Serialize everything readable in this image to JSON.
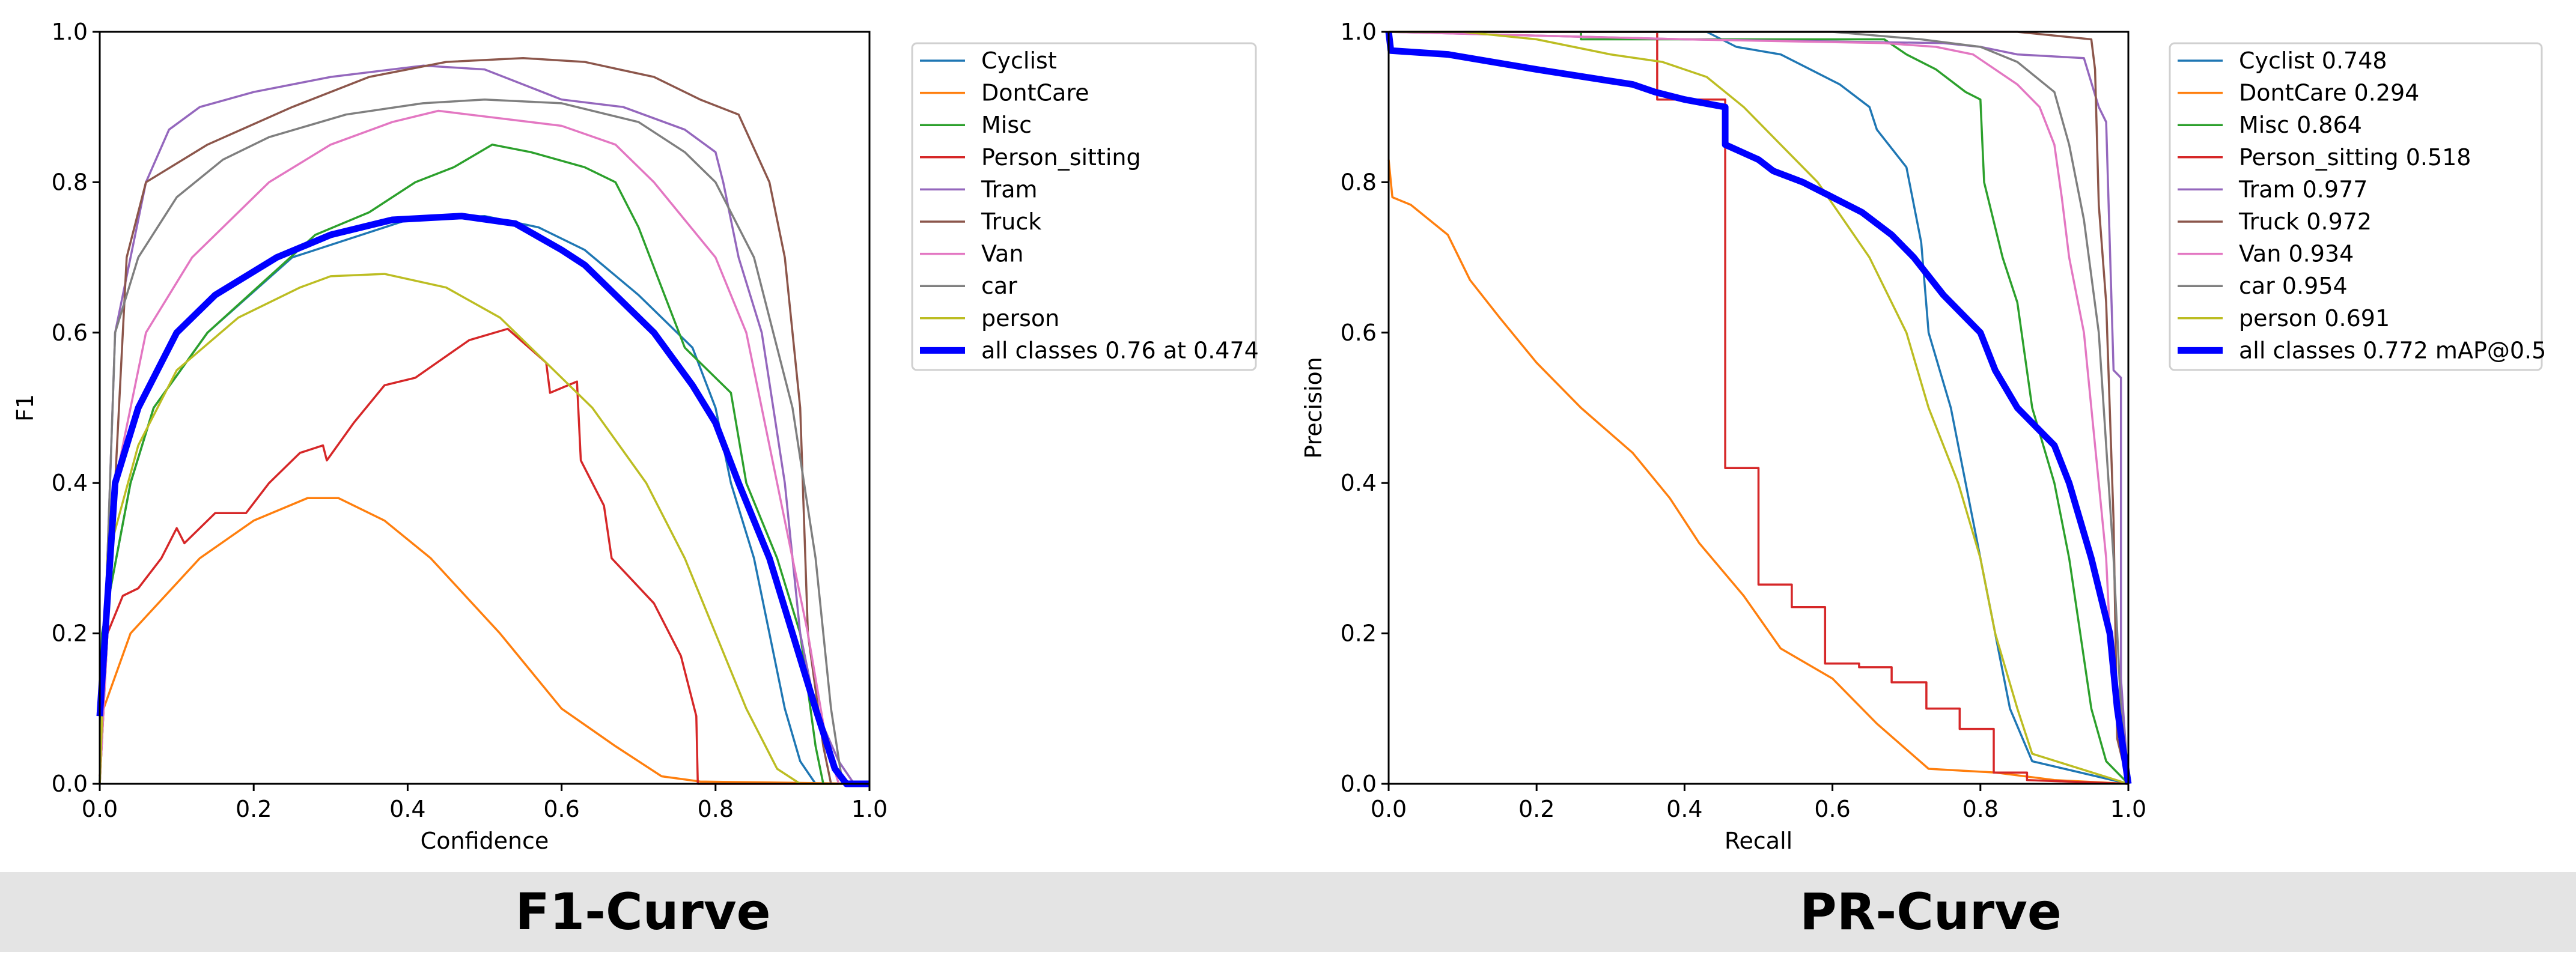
{
  "captions": {
    "left": "F1-Curve",
    "right": "PR-Curve"
  },
  "chart_data": [
    {
      "type": "line",
      "xlabel": "Confidence",
      "ylabel": "F1",
      "xlim": [
        0,
        1
      ],
      "ylim": [
        0,
        1
      ],
      "xticks": [
        "0.0",
        "0.2",
        "0.4",
        "0.6",
        "0.8",
        "1.0"
      ],
      "yticks": [
        "0.0",
        "0.2",
        "0.4",
        "0.6",
        "0.8",
        "1.0"
      ],
      "grid": false,
      "legend": "outside-right",
      "series": [
        {
          "name": "Cyclist",
          "color": "#1f77b4",
          "x": [
            0,
            0.003,
            0.04,
            0.07,
            0.14,
            0.25,
            0.4,
            0.5,
            0.57,
            0.63,
            0.7,
            0.77,
            0.8,
            0.82,
            0.85,
            0.87,
            0.89,
            0.91,
            0.93,
            1
          ],
          "y": [
            0,
            0.2,
            0.4,
            0.5,
            0.6,
            0.7,
            0.75,
            0.755,
            0.74,
            0.71,
            0.65,
            0.58,
            0.5,
            0.4,
            0.3,
            0.2,
            0.1,
            0.03,
            0,
            0
          ]
        },
        {
          "name": "DontCare",
          "color": "#ff7f0e",
          "x": [
            0,
            0.005,
            0.04,
            0.13,
            0.2,
            0.27,
            0.31,
            0.37,
            0.43,
            0.52,
            0.6,
            0.67,
            0.73,
            0.78,
            1
          ],
          "y": [
            0,
            0.1,
            0.2,
            0.3,
            0.35,
            0.38,
            0.38,
            0.35,
            0.3,
            0.2,
            0.1,
            0.05,
            0.01,
            0.003,
            0
          ]
        },
        {
          "name": "Misc",
          "color": "#2ca02c",
          "x": [
            0,
            0.003,
            0.04,
            0.07,
            0.14,
            0.28,
            0.35,
            0.41,
            0.46,
            0.51,
            0.56,
            0.63,
            0.67,
            0.7,
            0.73,
            0.76,
            0.82,
            0.84,
            0.88,
            0.91,
            0.93,
            0.94,
            1
          ],
          "y": [
            0,
            0.2,
            0.4,
            0.5,
            0.6,
            0.73,
            0.76,
            0.8,
            0.82,
            0.85,
            0.84,
            0.82,
            0.8,
            0.74,
            0.66,
            0.58,
            0.52,
            0.4,
            0.3,
            0.2,
            0.05,
            0,
            0
          ]
        },
        {
          "name": "Person_sitting",
          "color": "#d62728",
          "x": [
            0,
            0.01,
            0.03,
            0.05,
            0.08,
            0.1,
            0.11,
            0.15,
            0.19,
            0.22,
            0.26,
            0.29,
            0.295,
            0.33,
            0.37,
            0.41,
            0.48,
            0.53,
            0.58,
            0.585,
            0.62,
            0.625,
            0.655,
            0.665,
            0.72,
            0.755,
            0.775,
            0.777,
            1
          ],
          "y": [
            0.01,
            0.2,
            0.25,
            0.26,
            0.3,
            0.34,
            0.32,
            0.36,
            0.36,
            0.4,
            0.44,
            0.45,
            0.43,
            0.48,
            0.53,
            0.54,
            0.59,
            0.605,
            0.56,
            0.52,
            0.535,
            0.43,
            0.37,
            0.3,
            0.24,
            0.17,
            0.09,
            0,
            0
          ]
        },
        {
          "name": "Tram",
          "color": "#9467bd",
          "x": [
            0,
            0.02,
            0.06,
            0.09,
            0.13,
            0.2,
            0.3,
            0.42,
            0.5,
            0.55,
            0.6,
            0.68,
            0.76,
            0.8,
            0.81,
            0.83,
            0.86,
            0.89,
            0.91,
            0.93,
            0.96,
            0.98,
            1
          ],
          "y": [
            0,
            0.6,
            0.8,
            0.87,
            0.9,
            0.92,
            0.94,
            0.955,
            0.95,
            0.93,
            0.91,
            0.9,
            0.87,
            0.84,
            0.8,
            0.7,
            0.6,
            0.4,
            0.2,
            0.1,
            0.03,
            0,
            0
          ]
        },
        {
          "name": "Truck",
          "color": "#8c564b",
          "x": [
            0,
            0.035,
            0.06,
            0.14,
            0.25,
            0.35,
            0.45,
            0.55,
            0.63,
            0.72,
            0.78,
            0.83,
            0.87,
            0.89,
            0.91,
            0.92,
            0.94,
            0.95,
            1
          ],
          "y": [
            0,
            0.7,
            0.8,
            0.85,
            0.9,
            0.94,
            0.96,
            0.965,
            0.96,
            0.94,
            0.91,
            0.89,
            0.8,
            0.7,
            0.5,
            0.2,
            0.05,
            0,
            0
          ]
        },
        {
          "name": "Van",
          "color": "#e377c2",
          "x": [
            0,
            0.02,
            0.06,
            0.12,
            0.22,
            0.3,
            0.38,
            0.44,
            0.52,
            0.6,
            0.67,
            0.72,
            0.8,
            0.84,
            0.88,
            0.92,
            0.945,
            0.96,
            1
          ],
          "y": [
            0,
            0.4,
            0.6,
            0.7,
            0.8,
            0.85,
            0.88,
            0.895,
            0.885,
            0.875,
            0.85,
            0.8,
            0.7,
            0.6,
            0.4,
            0.2,
            0.05,
            0,
            0
          ]
        },
        {
          "name": "car",
          "color": "#7f7f7f",
          "x": [
            0,
            0.02,
            0.05,
            0.1,
            0.16,
            0.22,
            0.32,
            0.42,
            0.5,
            0.6,
            0.7,
            0.76,
            0.8,
            0.85,
            0.9,
            0.93,
            0.95,
            0.965,
            1
          ],
          "y": [
            0,
            0.6,
            0.7,
            0.78,
            0.83,
            0.86,
            0.89,
            0.905,
            0.91,
            0.905,
            0.88,
            0.84,
            0.8,
            0.7,
            0.5,
            0.3,
            0.1,
            0,
            0
          ]
        },
        {
          "name": "person",
          "color": "#bcbd22",
          "x": [
            0,
            0.01,
            0.05,
            0.1,
            0.18,
            0.26,
            0.3,
            0.37,
            0.45,
            0.52,
            0.59,
            0.64,
            0.71,
            0.76,
            0.8,
            0.84,
            0.88,
            0.91,
            1
          ],
          "y": [
            0,
            0.3,
            0.45,
            0.55,
            0.62,
            0.66,
            0.675,
            0.678,
            0.66,
            0.62,
            0.55,
            0.5,
            0.4,
            0.3,
            0.2,
            0.1,
            0.02,
            0,
            0
          ]
        },
        {
          "name": "all classes 0.76 at 0.474",
          "color": "#0000ff",
          "bold": true,
          "x": [
            0,
            0.02,
            0.05,
            0.1,
            0.15,
            0.23,
            0.3,
            0.38,
            0.47,
            0.54,
            0.6,
            0.63,
            0.67,
            0.72,
            0.77,
            0.8,
            0.83,
            0.87,
            0.9,
            0.93,
            0.955,
            0.97,
            1
          ],
          "y": [
            0.09,
            0.4,
            0.5,
            0.6,
            0.65,
            0.7,
            0.73,
            0.75,
            0.755,
            0.745,
            0.71,
            0.69,
            0.65,
            0.6,
            0.53,
            0.48,
            0.4,
            0.3,
            0.2,
            0.1,
            0.02,
            0,
            0
          ]
        }
      ]
    },
    {
      "type": "line",
      "xlabel": "Recall",
      "ylabel": "Precision",
      "xlim": [
        0,
        1
      ],
      "ylim": [
        0,
        1
      ],
      "xticks": [
        "0.0",
        "0.2",
        "0.4",
        "0.6",
        "0.8",
        "1.0"
      ],
      "yticks": [
        "0.0",
        "0.2",
        "0.4",
        "0.6",
        "0.8",
        "1.0"
      ],
      "grid": false,
      "legend": "outside-right",
      "series": [
        {
          "name": "Cyclist 0.748",
          "color": "#1f77b4",
          "x": [
            0,
            0.43,
            0.47,
            0.53,
            0.57,
            0.61,
            0.65,
            0.66,
            0.7,
            0.72,
            0.73,
            0.76,
            0.78,
            0.8,
            0.82,
            0.84,
            0.87,
            1
          ],
          "y": [
            1,
            1,
            0.98,
            0.97,
            0.95,
            0.93,
            0.9,
            0.87,
            0.82,
            0.72,
            0.6,
            0.5,
            0.4,
            0.3,
            0.2,
            0.1,
            0.03,
            0
          ]
        },
        {
          "name": "DontCare 0.294",
          "color": "#ff7f0e",
          "x": [
            0,
            0.005,
            0.03,
            0.08,
            0.11,
            0.15,
            0.2,
            0.26,
            0.33,
            0.38,
            0.42,
            0.48,
            0.53,
            0.6,
            0.66,
            0.73,
            0.82,
            0.9,
            1
          ],
          "y": [
            0.83,
            0.78,
            0.77,
            0.73,
            0.67,
            0.62,
            0.56,
            0.5,
            0.44,
            0.38,
            0.32,
            0.25,
            0.18,
            0.14,
            0.08,
            0.02,
            0.015,
            0.005,
            0
          ]
        },
        {
          "name": "Misc 0.864",
          "color": "#2ca02c",
          "x": [
            0,
            0.26,
            0.26,
            0.67,
            0.7,
            0.74,
            0.78,
            0.8,
            0.805,
            0.83,
            0.85,
            0.87,
            0.9,
            0.92,
            0.935,
            0.95,
            0.97,
            1
          ],
          "y": [
            1,
            1,
            0.99,
            0.99,
            0.97,
            0.95,
            0.92,
            0.91,
            0.8,
            0.7,
            0.64,
            0.5,
            0.4,
            0.3,
            0.2,
            0.1,
            0.03,
            0
          ]
        },
        {
          "name": "Person_sitting 0.518",
          "color": "#d62728",
          "x": [
            0,
            0.363,
            0.363,
            0.455,
            0.455,
            0.5,
            0.5,
            0.545,
            0.545,
            0.59,
            0.59,
            0.636,
            0.636,
            0.68,
            0.68,
            0.727,
            0.727,
            0.772,
            0.772,
            0.818,
            0.818,
            0.863,
            0.863,
            1
          ],
          "y": [
            1,
            1,
            0.91,
            0.91,
            0.42,
            0.42,
            0.265,
            0.265,
            0.235,
            0.235,
            0.16,
            0.16,
            0.155,
            0.155,
            0.135,
            0.135,
            0.1,
            0.1,
            0.073,
            0.073,
            0.015,
            0.015,
            0.005,
            0
          ]
        },
        {
          "name": "Tram 0.977",
          "color": "#9467bd",
          "x": [
            0,
            0.4,
            0.75,
            0.8,
            0.85,
            0.94,
            0.96,
            0.97,
            0.98,
            0.99,
            0.99,
            1
          ],
          "y": [
            1,
            0.99,
            0.985,
            0.98,
            0.97,
            0.965,
            0.9,
            0.88,
            0.55,
            0.54,
            0.14,
            0
          ]
        },
        {
          "name": "Truck 0.972",
          "color": "#8c564b",
          "x": [
            0,
            0.85,
            0.95,
            0.955,
            0.96,
            0.97,
            0.98,
            0.985,
            1
          ],
          "y": [
            1,
            1,
            0.99,
            0.95,
            0.77,
            0.64,
            0.35,
            0.06,
            0
          ]
        },
        {
          "name": "Van 0.934",
          "color": "#e377c2",
          "x": [
            0,
            0.4,
            0.67,
            0.74,
            0.79,
            0.82,
            0.85,
            0.88,
            0.9,
            0.91,
            0.92,
            0.94,
            0.95,
            0.96,
            0.97,
            0.975,
            0.985,
            1
          ],
          "y": [
            1,
            0.99,
            0.985,
            0.98,
            0.97,
            0.95,
            0.93,
            0.9,
            0.85,
            0.78,
            0.7,
            0.6,
            0.5,
            0.4,
            0.3,
            0.2,
            0.1,
            0
          ]
        },
        {
          "name": "car 0.954",
          "color": "#7f7f7f",
          "x": [
            0,
            0.6,
            0.72,
            0.8,
            0.85,
            0.9,
            0.92,
            0.94,
            0.96,
            0.97,
            0.98,
            0.99,
            1
          ],
          "y": [
            1,
            1,
            0.99,
            0.98,
            0.96,
            0.92,
            0.85,
            0.75,
            0.6,
            0.45,
            0.3,
            0.1,
            0
          ]
        },
        {
          "name": "person 0.691",
          "color": "#bcbd22",
          "x": [
            0,
            0.1,
            0.2,
            0.3,
            0.37,
            0.43,
            0.48,
            0.53,
            0.58,
            0.65,
            0.7,
            0.73,
            0.77,
            0.8,
            0.82,
            0.85,
            0.87,
            1
          ],
          "y": [
            1,
            1,
            0.99,
            0.97,
            0.96,
            0.94,
            0.9,
            0.85,
            0.8,
            0.7,
            0.6,
            0.5,
            0.4,
            0.3,
            0.2,
            0.1,
            0.04,
            0
          ]
        },
        {
          "name": "all classes 0.772 mAP@0.5",
          "color": "#0000ff",
          "bold": true,
          "x": [
            0,
            0.003,
            0.08,
            0.2,
            0.33,
            0.36,
            0.4,
            0.455,
            0.455,
            0.5,
            0.52,
            0.56,
            0.6,
            0.64,
            0.68,
            0.71,
            0.75,
            0.8,
            0.82,
            0.85,
            0.9,
            0.92,
            0.95,
            0.975,
            0.985,
            1
          ],
          "y": [
            1,
            0.975,
            0.97,
            0.95,
            0.93,
            0.92,
            0.91,
            0.9,
            0.85,
            0.83,
            0.815,
            0.8,
            0.78,
            0.76,
            0.73,
            0.7,
            0.65,
            0.6,
            0.55,
            0.5,
            0.45,
            0.4,
            0.3,
            0.2,
            0.1,
            0
          ]
        }
      ]
    }
  ]
}
